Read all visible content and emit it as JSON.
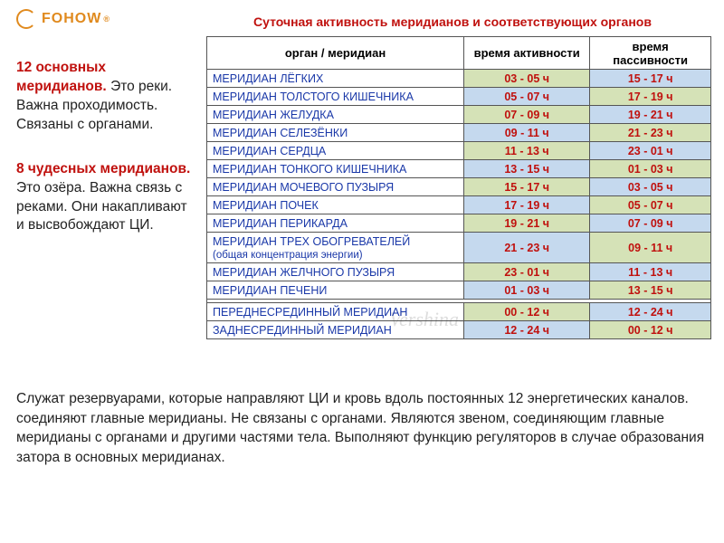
{
  "logo": {
    "text": "FOHOW",
    "reg": "®"
  },
  "title": "Суточная активность меридианов и соответствующих органов",
  "watermark": "Vershina-school",
  "left": {
    "h1": "12 основных меридианов.",
    "p1": "Это реки. Важна проходимость. Связаны с органами.",
    "h2": "8 чудесных меридианов.",
    "p2": "Это озёра. Важна связь с реками. Они накапливают и высвобождают ЦИ."
  },
  "table": {
    "headers": {
      "organ": "орган / меридиан",
      "active": "время активности",
      "passive": "время пассивности"
    },
    "rows": [
      {
        "organ": "МЕРИДИАН  ЛЁГКИХ",
        "active": "03 - 05 ч",
        "passive": "15 - 17 ч",
        "a": "g",
        "p": "b"
      },
      {
        "organ": "МЕРИДИАН  ТОЛСТОГО КИШЕЧНИКА",
        "active": "05 - 07 ч",
        "passive": "17 - 19 ч",
        "a": "b",
        "p": "g"
      },
      {
        "organ": "МЕРИДИАН  ЖЕЛУДКА",
        "active": "07 - 09 ч",
        "passive": "19 - 21 ч",
        "a": "g",
        "p": "b"
      },
      {
        "organ": "МЕРИДИАН  СЕЛЕЗЁНКИ",
        "active": "09 - 11 ч",
        "passive": "21 - 23 ч",
        "a": "b",
        "p": "g"
      },
      {
        "organ": "МЕРИДИАН  СЕРДЦА",
        "active": "11 - 13 ч",
        "passive": "23 - 01 ч",
        "a": "g",
        "p": "b"
      },
      {
        "organ": "МЕРИДИАН  ТОНКОГО КИШЕЧНИКА",
        "active": "13 - 15 ч",
        "passive": "01 - 03 ч",
        "a": "b",
        "p": "g"
      },
      {
        "organ": "МЕРИДИАН  МОЧЕВОГО ПУЗЫРЯ",
        "active": "15 - 17 ч",
        "passive": "03 - 05 ч",
        "a": "g",
        "p": "b"
      },
      {
        "organ": "МЕРИДИАН  ПОЧЕК",
        "active": "17 - 19 ч",
        "passive": "05 - 07 ч",
        "a": "b",
        "p": "g"
      },
      {
        "organ": "МЕРИДИАН  ПЕРИКАРДА",
        "active": "19 - 21 ч",
        "passive": "07 - 09 ч",
        "a": "g",
        "p": "b"
      },
      {
        "organ": "МЕРИДИАН  ТРЕХ ОБОГРЕВАТЕЛЕЙ",
        "sub": "(общая концентрация энергии)",
        "active": "21 - 23 ч",
        "passive": "09 - 11 ч",
        "a": "b",
        "p": "g"
      },
      {
        "organ": "МЕРИДИАН  ЖЕЛЧНОГО ПУЗЫРЯ",
        "active": "23 - 01 ч",
        "passive": "11 - 13 ч",
        "a": "g",
        "p": "b"
      },
      {
        "organ": "МЕРИДИАН  ПЕЧЕНИ",
        "active": "01 - 03 ч",
        "passive": "13 - 15 ч",
        "a": "b",
        "p": "g"
      }
    ],
    "extra": [
      {
        "organ": "ПЕРЕДНЕСРЕДИННЫЙ  МЕРИДИАН",
        "active": "00 - 12 ч",
        "passive": "12 - 24 ч",
        "a": "g",
        "p": "b"
      },
      {
        "organ": "ЗАДНЕСРЕДИННЫЙ  МЕРИДИАН",
        "active": "12 - 24 ч",
        "passive": "00 - 12 ч",
        "a": "b",
        "p": "g"
      }
    ]
  },
  "bottom": "Служат резервуарами, которые направляют ЦИ  и кровь вдоль постоянных 12 энергетических каналов. соединяют главные меридианы. Не связаны с органами. Являются звеном, соединяющим главные меридианы с органами и другими частями тела. Выполняют функцию регуляторов в случае образования затора в основных меридианах.",
  "colors": {
    "green": "#d5e2b7",
    "blue": "#c5d9ee",
    "red": "#c0110e",
    "link": "#1a38a8"
  }
}
